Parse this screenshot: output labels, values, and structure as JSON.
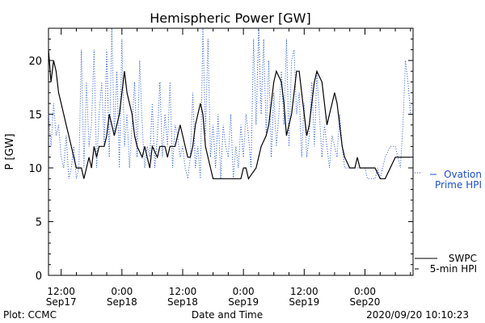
{
  "chart_data": {
    "type": "line",
    "title": "Hemispheric Power [GW]",
    "xlabel": "Date and Time",
    "ylabel": "P [GW]",
    "ylim": [
      0,
      23
    ],
    "xlim_hours": [
      -14.5,
      42
    ],
    "y_ticks": [
      0,
      5,
      10,
      15,
      20
    ],
    "x_ticks": [
      {
        "h": -12,
        "label1": "12:00",
        "label2": "Sep17"
      },
      {
        "h": 0,
        "label1": "0:00",
        "label2": "Sep18"
      },
      {
        "h": 12,
        "label1": "12:00",
        "label2": "Sep18"
      },
      {
        "h": 24,
        "label1": "0:00",
        "label2": "Sep19"
      },
      {
        "h": 36,
        "label1": "12:00",
        "label2": "Sep19"
      },
      {
        "h": 48,
        "label1": "0:00",
        "label2": "Sep20"
      }
    ],
    "series": [
      {
        "name": "SWPC 5-min HPI",
        "color": "#000000",
        "style": "solid",
        "points": [
          [
            -14.5,
            21
          ],
          [
            -14.0,
            18
          ],
          [
            -13.5,
            20
          ],
          [
            -13.0,
            19
          ],
          [
            -12.5,
            17
          ],
          [
            -12.0,
            16
          ],
          [
            -11.5,
            15
          ],
          [
            -11.0,
            14
          ],
          [
            -10.5,
            13
          ],
          [
            -10.0,
            12
          ],
          [
            -9.5,
            11
          ],
          [
            -9.0,
            10
          ],
          [
            -8.0,
            10
          ],
          [
            -7.5,
            9
          ],
          [
            -7.0,
            10
          ],
          [
            -6.5,
            11
          ],
          [
            -6.0,
            10
          ],
          [
            -5.5,
            12
          ],
          [
            -5.0,
            11
          ],
          [
            -4.5,
            12
          ],
          [
            -3.5,
            12
          ],
          [
            -3.0,
            13
          ],
          [
            -2.5,
            15
          ],
          [
            -2.0,
            14
          ],
          [
            -1.5,
            13
          ],
          [
            -0.5,
            15
          ],
          [
            0.0,
            17
          ],
          [
            0.5,
            19
          ],
          [
            1.0,
            17
          ],
          [
            1.5,
            16
          ],
          [
            2.0,
            15
          ],
          [
            2.5,
            13
          ],
          [
            3.0,
            12
          ],
          [
            4.0,
            11
          ],
          [
            4.5,
            12
          ],
          [
            5.0,
            11
          ],
          [
            5.5,
            10
          ],
          [
            6.0,
            12
          ],
          [
            7.0,
            11
          ],
          [
            7.5,
            12
          ],
          [
            8.5,
            12
          ],
          [
            9.0,
            11
          ],
          [
            9.5,
            12
          ],
          [
            10.5,
            12
          ],
          [
            11.0,
            13
          ],
          [
            11.5,
            14
          ],
          [
            12.0,
            13
          ],
          [
            12.5,
            12
          ],
          [
            13.0,
            11
          ],
          [
            13.5,
            11
          ],
          [
            14.0,
            12
          ],
          [
            14.5,
            14
          ],
          [
            15.0,
            15
          ],
          [
            15.5,
            16
          ],
          [
            16.0,
            15
          ],
          [
            16.5,
            12
          ],
          [
            17.0,
            11
          ],
          [
            17.5,
            10
          ],
          [
            18.0,
            9
          ],
          [
            19.0,
            9
          ],
          [
            20.0,
            9
          ],
          [
            22.0,
            9
          ],
          [
            23.5,
            9
          ],
          [
            24.0,
            10
          ],
          [
            24.5,
            10
          ],
          [
            25.0,
            9
          ],
          [
            26.5,
            10
          ],
          [
            27.0,
            11
          ],
          [
            27.5,
            12
          ],
          [
            28.5,
            13
          ],
          [
            29.0,
            14
          ],
          [
            29.5,
            16
          ],
          [
            30.0,
            18
          ],
          [
            30.5,
            19
          ],
          [
            31.5,
            18
          ],
          [
            32.0,
            16
          ],
          [
            32.5,
            13
          ],
          [
            33.0,
            14
          ],
          [
            33.5,
            15
          ],
          [
            34.0,
            17
          ],
          [
            34.5,
            19
          ],
          [
            35.0,
            19
          ],
          [
            35.5,
            17
          ],
          [
            36.0,
            15
          ],
          [
            36.5,
            13
          ],
          [
            37.0,
            14
          ],
          [
            37.5,
            16
          ],
          [
            38.0,
            18
          ],
          [
            38.5,
            19
          ],
          [
            39.5,
            18
          ],
          [
            40.0,
            16
          ],
          [
            40.5,
            14
          ],
          [
            41.0,
            15
          ],
          [
            41.5,
            16
          ],
          [
            42.0,
            17
          ],
          [
            42.5,
            16
          ],
          [
            43.0,
            14
          ],
          [
            43.5,
            12
          ],
          [
            44.0,
            11
          ],
          [
            45.0,
            10
          ],
          [
            46.0,
            10
          ],
          [
            46.5,
            11
          ],
          [
            47.0,
            10
          ],
          [
            47.5,
            10
          ],
          [
            48.0,
            10
          ],
          [
            49.0,
            10
          ],
          [
            50.0,
            10
          ],
          [
            51.0,
            9
          ],
          [
            52.0,
            9
          ],
          [
            53.0,
            10
          ],
          [
            54.0,
            11
          ],
          [
            55.0,
            11
          ],
          [
            56.0,
            11
          ],
          [
            57.0,
            11
          ]
        ]
      },
      {
        "name": "Ovation Prime HPI",
        "color": "#1a4fd6",
        "style": "dotted",
        "points": [
          [
            -14.5,
            15
          ],
          [
            -14.0,
            12
          ],
          [
            -13.5,
            16
          ],
          [
            -13.0,
            13
          ],
          [
            -12.5,
            14
          ],
          [
            -12.0,
            11
          ],
          [
            -11.5,
            10
          ],
          [
            -11.0,
            13
          ],
          [
            -10.5,
            9
          ],
          [
            -10.0,
            10
          ],
          [
            -9.5,
            12
          ],
          [
            -9.0,
            9
          ],
          [
            -8.5,
            10
          ],
          [
            -8.0,
            21
          ],
          [
            -7.5,
            10
          ],
          [
            -7.0,
            18
          ],
          [
            -6.5,
            12
          ],
          [
            -6.0,
            14
          ],
          [
            -5.5,
            21
          ],
          [
            -5.0,
            10
          ],
          [
            -4.5,
            15
          ],
          [
            -4.0,
            18
          ],
          [
            -3.5,
            12
          ],
          [
            -3.0,
            21
          ],
          [
            -2.5,
            11
          ],
          [
            -2.0,
            23
          ],
          [
            -1.5,
            13
          ],
          [
            -1.0,
            19
          ],
          [
            -0.5,
            10
          ],
          [
            0.0,
            22
          ],
          [
            0.5,
            12
          ],
          [
            1.0,
            15
          ],
          [
            1.5,
            10
          ],
          [
            2.0,
            14
          ],
          [
            2.5,
            18
          ],
          [
            3.0,
            11
          ],
          [
            3.5,
            20
          ],
          [
            4.0,
            14
          ],
          [
            4.5,
            10
          ],
          [
            5.0,
            12
          ],
          [
            5.5,
            11
          ],
          [
            6.0,
            16
          ],
          [
            6.5,
            10
          ],
          [
            7.0,
            13
          ],
          [
            7.5,
            18
          ],
          [
            8.0,
            11
          ],
          [
            8.5,
            15
          ],
          [
            9.0,
            12
          ],
          [
            9.5,
            18
          ],
          [
            10.0,
            10
          ],
          [
            10.5,
            14
          ],
          [
            11.0,
            13
          ],
          [
            11.5,
            11
          ],
          [
            12.0,
            12
          ],
          [
            12.5,
            10
          ],
          [
            13.0,
            9
          ],
          [
            13.5,
            11
          ],
          [
            14.0,
            17
          ],
          [
            14.5,
            10
          ],
          [
            15.0,
            12
          ],
          [
            15.5,
            9
          ],
          [
            16.0,
            23
          ],
          [
            16.5,
            13
          ],
          [
            17.0,
            22
          ],
          [
            17.5,
            11
          ],
          [
            18.0,
            14
          ],
          [
            18.5,
            10
          ],
          [
            19.0,
            15
          ],
          [
            19.5,
            9
          ],
          [
            20.0,
            14
          ],
          [
            20.5,
            12
          ],
          [
            21.0,
            11
          ],
          [
            21.5,
            15
          ],
          [
            22.0,
            9
          ],
          [
            22.5,
            12
          ],
          [
            23.0,
            10
          ],
          [
            23.5,
            14
          ],
          [
            24.0,
            11
          ],
          [
            24.5,
            15
          ],
          [
            25.0,
            13
          ],
          [
            25.5,
            10
          ],
          [
            26.0,
            22
          ],
          [
            26.5,
            14
          ],
          [
            27.0,
            23
          ],
          [
            27.5,
            15
          ],
          [
            28.0,
            22
          ],
          [
            28.5,
            13
          ],
          [
            29.0,
            20
          ],
          [
            29.5,
            11
          ],
          [
            30.0,
            17
          ],
          [
            30.5,
            12
          ],
          [
            31.0,
            15
          ],
          [
            31.5,
            19
          ],
          [
            32.0,
            14
          ],
          [
            32.5,
            22
          ],
          [
            33.0,
            12
          ],
          [
            33.5,
            20
          ],
          [
            34.0,
            21
          ],
          [
            34.5,
            15
          ],
          [
            35.0,
            17
          ],
          [
            35.5,
            11
          ],
          [
            36.0,
            16
          ],
          [
            36.5,
            11
          ],
          [
            37.0,
            13
          ],
          [
            37.5,
            18
          ],
          [
            38.0,
            12
          ],
          [
            38.5,
            19
          ],
          [
            39.0,
            15
          ],
          [
            39.5,
            11
          ],
          [
            40.0,
            14
          ],
          [
            40.5,
            12
          ],
          [
            41.0,
            10
          ],
          [
            41.5,
            13
          ],
          [
            42.0,
            12
          ],
          [
            42.5,
            11
          ],
          [
            43.0,
            15
          ],
          [
            43.5,
            12
          ],
          [
            44.0,
            10
          ],
          [
            45.0,
            10
          ],
          [
            46.0,
            10
          ],
          [
            47.0,
            10
          ],
          [
            48.0,
            10
          ],
          [
            48.5,
            9
          ],
          [
            49.0,
            9
          ],
          [
            50.0,
            9
          ],
          [
            50.5,
            10
          ],
          [
            51.0,
            9
          ],
          [
            52.0,
            11
          ],
          [
            53.0,
            12
          ],
          [
            54.0,
            12
          ],
          [
            55.0,
            10
          ],
          [
            55.5,
            14
          ],
          [
            56.0,
            20
          ],
          [
            56.5,
            18
          ],
          [
            57.0,
            15
          ]
        ]
      }
    ]
  },
  "legend": {
    "ovation_line1": "Ovation",
    "ovation_line2": "Prime HPI",
    "swpc_line1": "SWPC",
    "swpc_line2": "5-min HPI",
    "ovation_color": "#1a4fd6",
    "swpc_color": "#000000"
  },
  "footer": {
    "plot_credit": "Plot: CCMC",
    "xlabel": "Date and Time",
    "timestamp": "2020/09/20 10:10:23"
  }
}
